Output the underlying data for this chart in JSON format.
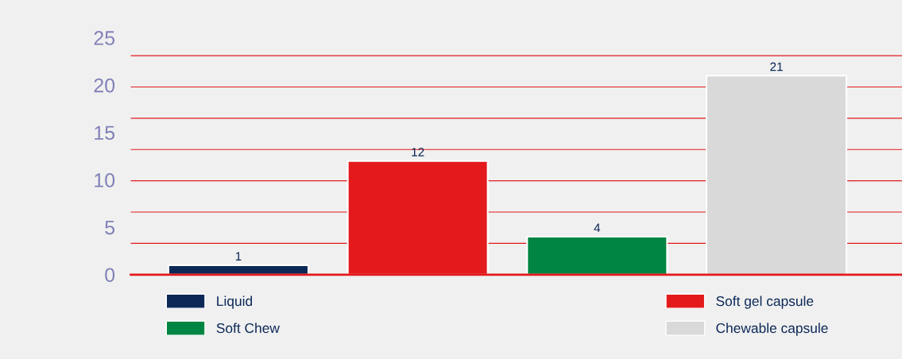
{
  "chart_data": {
    "type": "bar",
    "categories": [
      null,
      null,
      null,
      null
    ],
    "series": [
      {
        "name": "Liquid",
        "color": "#0b2857",
        "values": [
          1,
          null,
          null,
          null
        ]
      },
      {
        "name": "Soft gel capsule",
        "color": "#e3191c",
        "values": [
          null,
          12,
          null,
          null
        ]
      },
      {
        "name": "Soft Chew",
        "color": "#008542",
        "values": [
          null,
          null,
          4,
          null
        ]
      },
      {
        "name": "Chewable capsule",
        "color": "#d9d9d9",
        "values": [
          null,
          null,
          null,
          21
        ]
      }
    ],
    "ylim": [
      0,
      25
    ],
    "yticks": [
      0,
      5,
      10,
      15,
      20,
      25
    ],
    "grid": false,
    "data_labels": true,
    "legend": "bottom",
    "ref_lines": [
      {
        "axis": "y",
        "value": 3.3,
        "color": "#e3191c"
      },
      {
        "axis": "y",
        "value": 6.6,
        "color": "#e3191c"
      },
      {
        "axis": "y",
        "value": 9.9,
        "color": "#e3191c"
      },
      {
        "axis": "y",
        "value": 13.2,
        "color": "#e3191c"
      },
      {
        "axis": "y",
        "value": 16.5,
        "color": "#e3191c"
      },
      {
        "axis": "y",
        "value": 19.8,
        "color": "#e3191c"
      },
      {
        "axis": "y",
        "value": 23.1,
        "color": "#e3191c"
      }
    ]
  }
}
